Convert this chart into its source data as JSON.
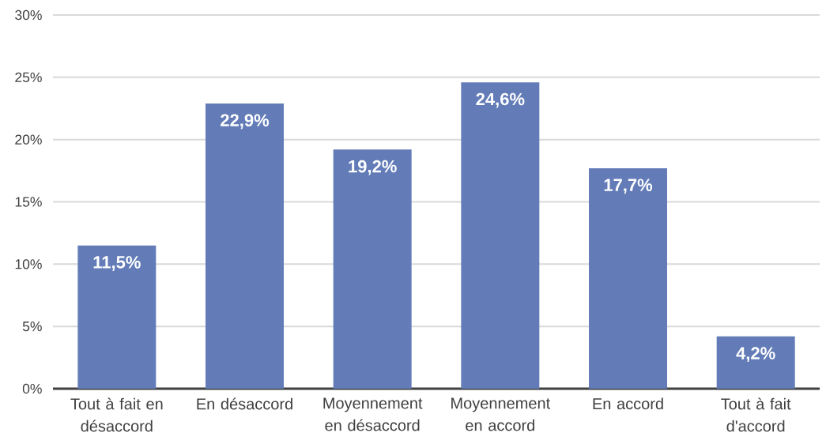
{
  "chart_data": {
    "type": "bar",
    "categories": [
      "Tout à fait en désaccord",
      "En désaccord",
      "Moyennement en désaccord",
      "Moyennement en accord",
      "En accord",
      "Tout à fait d'accord"
    ],
    "values": [
      11.5,
      22.9,
      19.2,
      24.6,
      17.7,
      4.2
    ],
    "value_labels": [
      "11,5%",
      "22,9%",
      "19,2%",
      "24,6%",
      "17,7%",
      "4,2%"
    ],
    "color": "#637cb8",
    "ylim": [
      0,
      30
    ],
    "yticks": [
      {
        "value": 0,
        "label": "0%"
      },
      {
        "value": 5,
        "label": "5%"
      },
      {
        "value": 10,
        "label": "10%"
      },
      {
        "value": 15,
        "label": "15%"
      },
      {
        "value": 20,
        "label": "20%"
      },
      {
        "value": 25,
        "label": "25%"
      },
      {
        "value": 30,
        "label": "30%"
      }
    ],
    "grid": "y"
  }
}
